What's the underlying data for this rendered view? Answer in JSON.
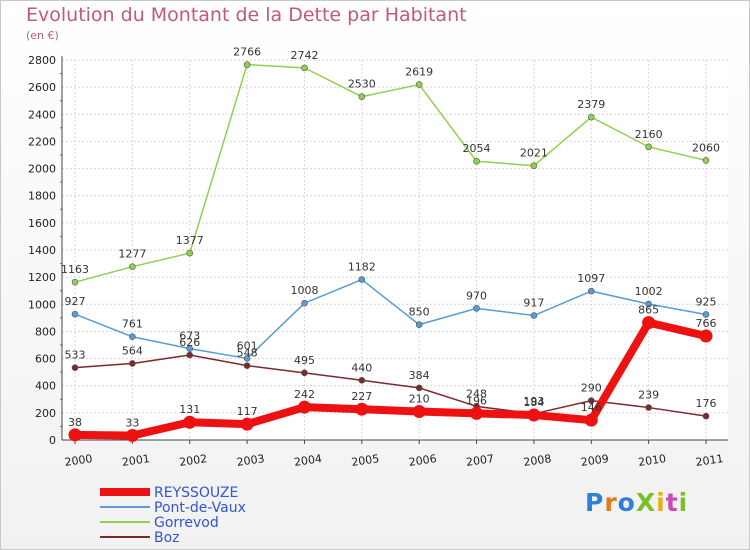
{
  "chart_data": {
    "type": "line",
    "title": "Evolution du Montant de la Dette par Habitant",
    "subtitle": "(en €)",
    "categories": [
      "2000",
      "2001",
      "2002",
      "2003",
      "2004",
      "2005",
      "2006",
      "2007",
      "2008",
      "2009",
      "2010",
      "2011"
    ],
    "ylim": [
      0,
      2800
    ],
    "yticks": [
      0,
      200,
      400,
      600,
      800,
      1000,
      1200,
      1400,
      1600,
      1800,
      2000,
      2200,
      2400,
      2600,
      2800
    ],
    "grid": true,
    "legend_position": "bottom-left",
    "series": [
      {
        "name": "Boz",
        "color": "#7a2a2a",
        "values": [
          533,
          564,
          626,
          548,
          495,
          440,
          384,
          248,
          193,
          290,
          239,
          176
        ]
      },
      {
        "name": "Gorrevod",
        "color": "#8fd14f",
        "values": [
          1163,
          1277,
          1377,
          2766,
          2742,
          2530,
          2619,
          2054,
          2021,
          2379,
          2160,
          2060
        ]
      },
      {
        "name": "Pont-de-Vaux",
        "color": "#5a9bd5",
        "values": [
          927,
          761,
          673,
          601,
          1008,
          1182,
          850,
          970,
          917,
          1097,
          1002,
          925
        ]
      },
      {
        "name": "REYSSOUZE",
        "color": "#ee1111",
        "values": [
          38,
          33,
          131,
          117,
          242,
          227,
          210,
          196,
          184,
          146,
          865,
          766
        ]
      }
    ]
  },
  "logo_text": "ProXiti"
}
